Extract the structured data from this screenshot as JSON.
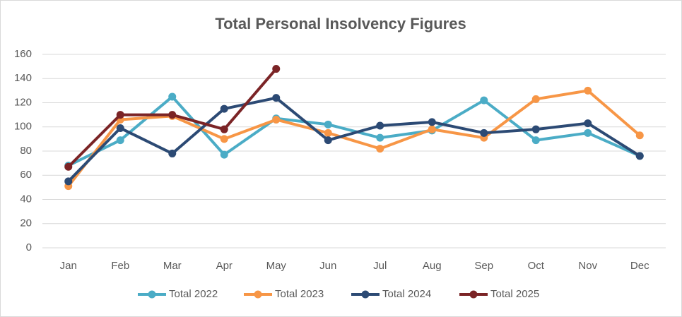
{
  "chart_data": {
    "type": "line",
    "title": "Total Personal Insolvency Figures",
    "categories": [
      "Jan",
      "Feb",
      "Mar",
      "Apr",
      "May",
      "Jun",
      "Jul",
      "Aug",
      "Sep",
      "Oct",
      "Nov",
      "Dec"
    ],
    "series": [
      {
        "name": "Total 2022",
        "color": "#4bacc6",
        "values": [
          68,
          89,
          125,
          77,
          107,
          102,
          91,
          97,
          122,
          89,
          95,
          76
        ]
      },
      {
        "name": "Total 2023",
        "color": "#f79646",
        "values": [
          51,
          106,
          109,
          90,
          106,
          95,
          82,
          98,
          91,
          123,
          130,
          93
        ]
      },
      {
        "name": "Total 2024",
        "color": "#2c4a74",
        "values": [
          55,
          99,
          78,
          115,
          124,
          89,
          101,
          104,
          95,
          98,
          103,
          76
        ]
      },
      {
        "name": "Total 2025",
        "color": "#7b2426",
        "values": [
          67,
          110,
          110,
          98,
          148,
          null,
          null,
          null,
          null,
          null,
          null,
          null
        ]
      }
    ],
    "ylim": [
      0,
      160
    ],
    "yticks": [
      0,
      20,
      40,
      60,
      80,
      100,
      120,
      140,
      160
    ],
    "grid": true,
    "legend": "bottom"
  }
}
